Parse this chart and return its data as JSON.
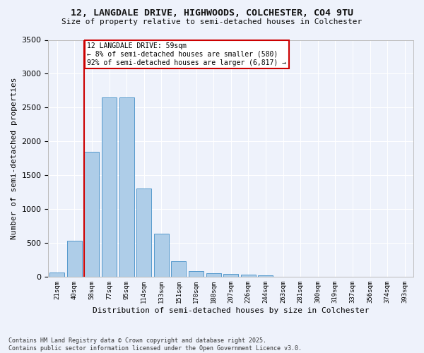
{
  "title_line1": "12, LANGDALE DRIVE, HIGHWOODS, COLCHESTER, CO4 9TU",
  "title_line2": "Size of property relative to semi-detached houses in Colchester",
  "xlabel": "Distribution of semi-detached houses by size in Colchester",
  "ylabel": "Number of semi-detached properties",
  "categories": [
    "21sqm",
    "40sqm",
    "58sqm",
    "77sqm",
    "95sqm",
    "114sqm",
    "133sqm",
    "151sqm",
    "170sqm",
    "188sqm",
    "207sqm",
    "226sqm",
    "244sqm",
    "263sqm",
    "281sqm",
    "300sqm",
    "319sqm",
    "337sqm",
    "356sqm",
    "374sqm",
    "393sqm"
  ],
  "values": [
    65,
    530,
    1850,
    2650,
    2650,
    1310,
    640,
    230,
    90,
    55,
    45,
    30,
    20,
    5,
    5,
    0,
    0,
    0,
    0,
    0,
    0
  ],
  "bar_color": "#aecde8",
  "bar_edge_color": "#5599cc",
  "vline_color": "#cc0000",
  "annotation_box_facecolor": "#ffffff",
  "annotation_box_edgecolor": "#cc0000",
  "annotation_text_line1": "12 LANGDALE DRIVE: 59sqm",
  "annotation_text_line2": "← 8% of semi-detached houses are smaller (580)",
  "annotation_text_line3": "92% of semi-detached houses are larger (6,817) →",
  "background_color": "#eef2fb",
  "grid_color": "#ffffff",
  "ylim": [
    0,
    3500
  ],
  "yticks": [
    0,
    500,
    1000,
    1500,
    2000,
    2500,
    3000,
    3500
  ],
  "footnote_line1": "Contains HM Land Registry data © Crown copyright and database right 2025.",
  "footnote_line2": "Contains public sector information licensed under the Open Government Licence v3.0."
}
